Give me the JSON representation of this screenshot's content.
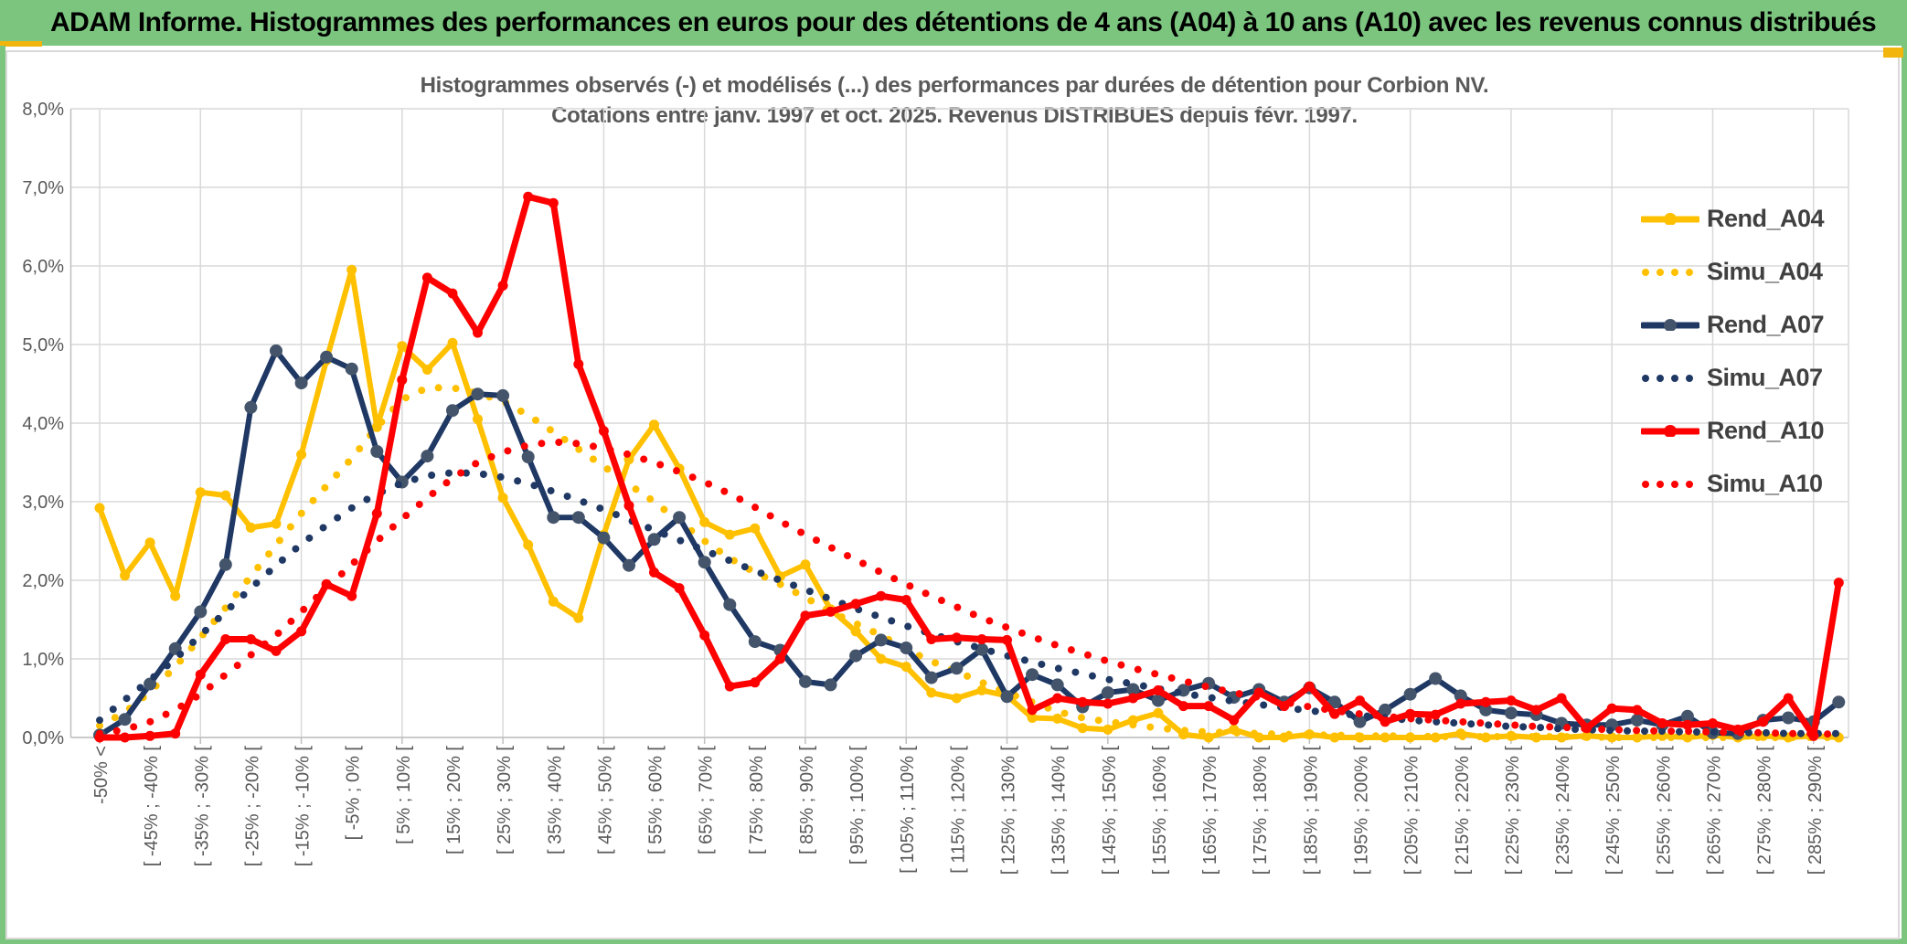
{
  "window": {
    "title": "ADAM Informe. Histogrammes des performances en euros pour des détentions de 4 ans (A04) à 10 ans (A10) avec les revenus connus distribués"
  },
  "colors": {
    "titlebar_green": "#7CC57F",
    "accent_gold": "#F2B50D",
    "series_yellow": "#FFC000",
    "series_navy": "#1F3864",
    "navy_marker": "#44546A",
    "series_red": "#FF0000",
    "gridline": "#D9D9D9",
    "axis_line": "#BFBFBF",
    "axis_text": "#595959",
    "legend_text": "#404040",
    "title_text": "#595959"
  },
  "chart_data": {
    "type": "line",
    "title": "Histogrammes observés (-) et modélisés (...) des performances par durées de détention pour Corbion NV.",
    "subtitle": "Cotations entre janv. 1997 et oct. 2025. Revenus DISTRIBUES depuis févr. 1997.",
    "xlabel": "",
    "ylabel": "",
    "ylim": [
      0,
      8
    ],
    "grid": true,
    "legend_position": "right",
    "y_tick_labels": [
      "0,0%",
      "1,0%",
      "2,0%",
      "3,0%",
      "4,0%",
      "5,0%",
      "6,0%",
      "7,0%",
      "8,0%"
    ],
    "n_bins": 70,
    "x_label_every_other_bin": true,
    "x_tick_labels": [
      "-50% <",
      "[ -45% ; -40% [",
      "[ -35% ; -30% [",
      "[ -25% ; -20% [",
      "[ -15% ; -10% [",
      "[ -5% ; 0% [",
      "[ 5% ; 10% [",
      "[ 15% ; 20% [",
      "[ 25% ; 30% [",
      "[ 35% ; 40% [",
      "[ 45% ; 50% [",
      "[ 55% ; 60% [",
      "[ 65% ; 70% [",
      "[ 75% ; 80% [",
      "[ 85% ; 90% [",
      "[ 95% ; 100% [",
      "[ 105% ; 110% [",
      "[ 115% ; 120% [",
      "[ 125% ; 130% [",
      "[ 135% ; 140% [",
      "[ 145% ; 150% [",
      "[ 155% ; 160% [",
      "[ 165% ; 170% [",
      "[ 175% ; 180% [",
      "[ 185% ; 190% [",
      "[ 195% ; 200% [",
      "[ 205% ; 210% [",
      "[ 215% ; 220% [",
      "[ 225% ; 230% [",
      "[ 235% ; 240% [",
      "[ 245% ; 250% [",
      "[ 255% ; 260% [",
      "[ 265% ; 270% [",
      "[ 275% ; 280% [",
      "[ 285% ; 290% ["
    ],
    "series": [
      {
        "name": "Rend_A04",
        "style": "solid",
        "color": "#FFC000",
        "marker_color": "#FFC000",
        "values": [
          2.92,
          2.06,
          2.48,
          1.8,
          3.12,
          3.08,
          2.67,
          2.72,
          3.6,
          4.8,
          5.95,
          3.95,
          4.98,
          4.68,
          5.02,
          4.05,
          3.05,
          2.45,
          1.73,
          1.52,
          2.58,
          3.54,
          3.98,
          3.42,
          2.74,
          2.58,
          2.66,
          2.05,
          2.2,
          1.63,
          1.35,
          1.0,
          0.9,
          0.57,
          0.5,
          0.6,
          0.53,
          0.25,
          0.24,
          0.12,
          0.1,
          0.22,
          0.31,
          0.04,
          0.0,
          0.1,
          0.0,
          0.0,
          0.04,
          0.0,
          0.0,
          0.0,
          0.0,
          0.0,
          0.05,
          0.0,
          0.02,
          0.0,
          0.0,
          0.02,
          0.0,
          0.0,
          0.02,
          0.0,
          0.03,
          0.0,
          0.02,
          0.0,
          0.02,
          0.0
        ]
      },
      {
        "name": "Simu_A04",
        "style": "dotted",
        "color": "#FFC000",
        "values": [
          0.15,
          0.32,
          0.58,
          0.9,
          1.27,
          1.65,
          2.05,
          2.45,
          2.85,
          3.2,
          3.55,
          3.95,
          4.3,
          4.45,
          4.45,
          4.38,
          4.28,
          4.1,
          3.89,
          3.67,
          3.45,
          3.22,
          3.0,
          2.75,
          2.5,
          2.28,
          2.1,
          1.95,
          1.78,
          1.6,
          1.45,
          1.3,
          1.12,
          0.97,
          0.84,
          0.7,
          0.57,
          0.45,
          0.33,
          0.25,
          0.2,
          0.16,
          0.12,
          0.09,
          0.07,
          0.06,
          0.05,
          0.04,
          0.03,
          0.03,
          0.02,
          0.02,
          0.02,
          0.01,
          0.01,
          0.01,
          0.01,
          0.01,
          0.01,
          0.01,
          0.0,
          0.0,
          0.0,
          0.0,
          0.0,
          0.0,
          0.0,
          0.0,
          0.0,
          0.0
        ]
      },
      {
        "name": "Rend_A07",
        "style": "solid",
        "color": "#1F3864",
        "marker_color": "#44546A",
        "values": [
          0.03,
          0.23,
          0.68,
          1.13,
          1.6,
          2.2,
          4.2,
          4.92,
          4.51,
          4.84,
          4.69,
          3.64,
          3.25,
          3.58,
          4.16,
          4.37,
          4.35,
          3.57,
          2.8,
          2.8,
          2.54,
          2.19,
          2.52,
          2.8,
          2.23,
          1.69,
          1.22,
          1.11,
          0.71,
          0.67,
          1.04,
          1.24,
          1.14,
          0.76,
          0.88,
          1.12,
          0.52,
          0.8,
          0.67,
          0.39,
          0.57,
          0.61,
          0.47,
          0.6,
          0.69,
          0.51,
          0.61,
          0.45,
          0.63,
          0.45,
          0.2,
          0.35,
          0.55,
          0.75,
          0.53,
          0.35,
          0.31,
          0.29,
          0.18,
          0.16,
          0.16,
          0.22,
          0.16,
          0.27,
          0.06,
          0.05,
          0.22,
          0.25,
          0.2,
          0.45
        ]
      },
      {
        "name": "Simu_A07",
        "style": "dotted",
        "color": "#1F3864",
        "values": [
          0.22,
          0.48,
          0.73,
          1.0,
          1.3,
          1.6,
          1.9,
          2.19,
          2.46,
          2.7,
          2.92,
          3.1,
          3.24,
          3.33,
          3.37,
          3.36,
          3.31,
          3.23,
          3.13,
          3.02,
          2.9,
          2.77,
          2.64,
          2.51,
          2.38,
          2.25,
          2.12,
          2.0,
          1.88,
          1.76,
          1.64,
          1.53,
          1.42,
          1.32,
          1.22,
          1.13,
          1.04,
          0.96,
          0.88,
          0.81,
          0.74,
          0.68,
          0.62,
          0.56,
          0.51,
          0.46,
          0.42,
          0.38,
          0.34,
          0.31,
          0.28,
          0.25,
          0.22,
          0.2,
          0.18,
          0.16,
          0.14,
          0.13,
          0.11,
          0.1,
          0.09,
          0.08,
          0.08,
          0.07,
          0.07,
          0.06,
          0.06,
          0.05,
          0.05,
          0.05
        ]
      },
      {
        "name": "Rend_A10",
        "style": "solid",
        "color": "#FF0000",
        "marker_color": "#FF0000",
        "values": [
          0.0,
          0.0,
          0.02,
          0.05,
          0.8,
          1.25,
          1.25,
          1.1,
          1.35,
          1.95,
          1.8,
          2.85,
          4.55,
          5.85,
          5.65,
          5.15,
          5.75,
          6.88,
          6.8,
          4.75,
          3.9,
          2.95,
          2.1,
          1.9,
          1.3,
          0.65,
          0.7,
          1.0,
          1.55,
          1.6,
          1.7,
          1.8,
          1.75,
          1.25,
          1.27,
          1.25,
          1.24,
          0.35,
          0.5,
          0.45,
          0.43,
          0.5,
          0.6,
          0.4,
          0.4,
          0.22,
          0.57,
          0.4,
          0.65,
          0.3,
          0.47,
          0.2,
          0.3,
          0.29,
          0.43,
          0.45,
          0.47,
          0.35,
          0.5,
          0.12,
          0.37,
          0.35,
          0.18,
          0.16,
          0.18,
          0.1,
          0.2,
          0.5,
          0.02,
          1.97
        ]
      },
      {
        "name": "Simu_A10",
        "style": "dotted",
        "color": "#FF0000",
        "values": [
          0.05,
          0.1,
          0.2,
          0.35,
          0.55,
          0.8,
          1.05,
          1.3,
          1.6,
          1.9,
          2.2,
          2.5,
          2.78,
          3.05,
          3.3,
          3.5,
          3.63,
          3.72,
          3.76,
          3.74,
          3.68,
          3.6,
          3.5,
          3.38,
          3.25,
          3.1,
          2.93,
          2.75,
          2.58,
          2.42,
          2.26,
          2.1,
          1.95,
          1.8,
          1.66,
          1.52,
          1.4,
          1.28,
          1.17,
          1.07,
          0.97,
          0.88,
          0.8,
          0.72,
          0.64,
          0.57,
          0.51,
          0.45,
          0.39,
          0.34,
          0.3,
          0.27,
          0.24,
          0.22,
          0.2,
          0.18,
          0.16,
          0.14,
          0.13,
          0.11,
          0.1,
          0.09,
          0.08,
          0.08,
          0.07,
          0.06,
          0.06,
          0.05,
          0.05,
          0.04
        ]
      }
    ]
  }
}
